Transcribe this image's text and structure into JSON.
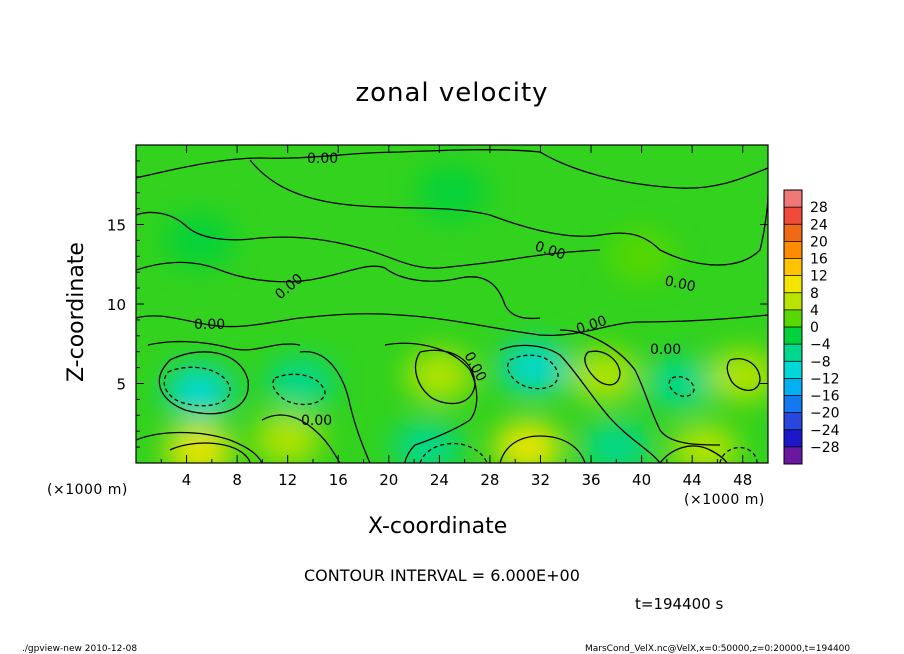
{
  "chart_data": {
    "type": "heatmap",
    "title": "zonal velocity",
    "xlabel": "X-coordinate",
    "ylabel": "Z-coordinate",
    "x_unit_label": "(×1000 m)",
    "xlim": [
      0,
      50
    ],
    "ylim": [
      0,
      20
    ],
    "x_ticks": [
      4,
      8,
      12,
      16,
      20,
      24,
      28,
      32,
      36,
      40,
      44,
      48
    ],
    "y_ticks": [
      5,
      10,
      15
    ],
    "colorbar": {
      "levels": [
        "28",
        "24",
        "20",
        "16",
        "12",
        "8",
        "4",
        "0",
        "−4",
        "−8",
        "−12",
        "−16",
        "−20",
        "−24",
        "−28"
      ],
      "colors": [
        "#f07878",
        "#f04a3a",
        "#f06a14",
        "#ff8c00",
        "#ffc400",
        "#f2e600",
        "#b8e400",
        "#58d800",
        "#00d23c",
        "#00d890",
        "#00d8d8",
        "#00b0f0",
        "#1478f0",
        "#2846e0",
        "#1a18c8",
        "#6a18a0"
      ]
    },
    "contour_label": "0.00",
    "cells": [
      {
        "x": 5,
        "z": 4.5,
        "v": -8
      },
      {
        "x": 13,
        "z": 5,
        "v": -4
      },
      {
        "x": 24,
        "z": 5.5,
        "v": 8
      },
      {
        "x": 31.5,
        "z": 6,
        "v": -10
      },
      {
        "x": 37,
        "z": 5.5,
        "v": 6
      },
      {
        "x": 43,
        "z": 5,
        "v": -6
      },
      {
        "x": 48,
        "z": 5.5,
        "v": 5
      },
      {
        "x": 5,
        "z": 0.8,
        "v": 10
      },
      {
        "x": 12,
        "z": 1.5,
        "v": 6
      },
      {
        "x": 23,
        "z": 1,
        "v": -6
      },
      {
        "x": 31,
        "z": 1,
        "v": 10
      },
      {
        "x": 38,
        "z": 1,
        "v": -5
      },
      {
        "x": 45,
        "z": 0.8,
        "v": 6
      },
      {
        "x": 5,
        "z": 14,
        "v": -2
      },
      {
        "x": 25,
        "z": 17,
        "v": -1
      },
      {
        "x": 40,
        "z": 13,
        "v": 1
      }
    ]
  },
  "annotations": {
    "contour_interval": "CONTOUR INTERVAL = 6.000E+00",
    "time": "t=194400 s",
    "footer_left": "./gpview-new  2010-12-08",
    "footer_right": "MarsCond_VelX.nc@VelX,x=0:50000,z=0:20000,t=194400"
  }
}
